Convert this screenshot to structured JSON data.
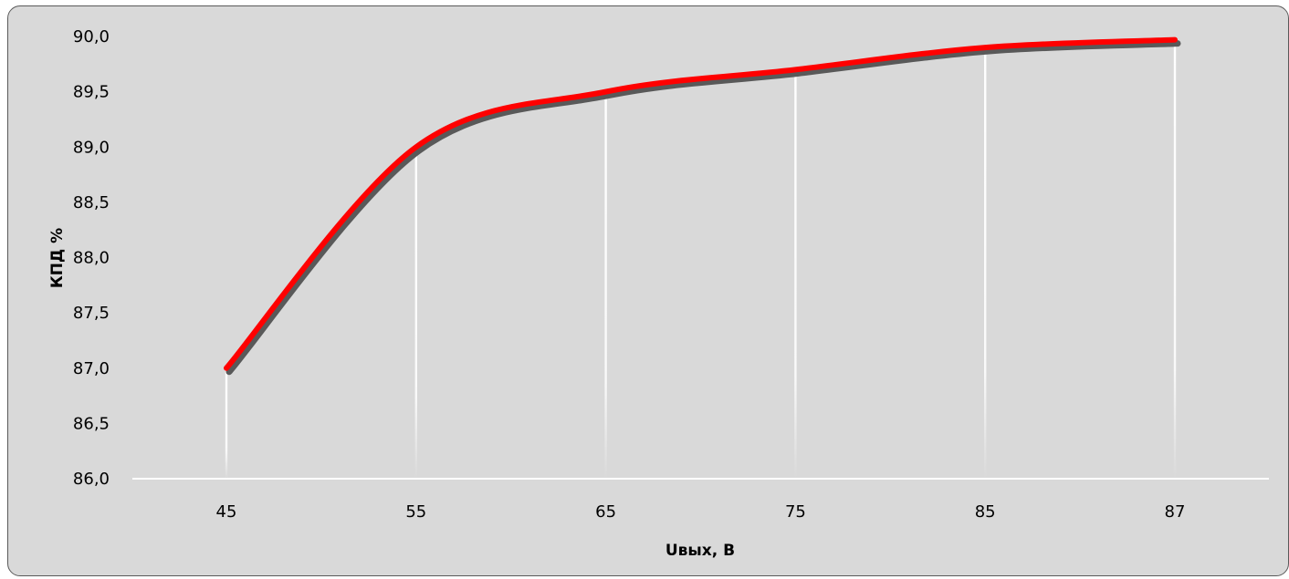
{
  "chart_data": {
    "type": "line",
    "title": "",
    "xlabel": "Uвых, В",
    "ylabel": "КПД %",
    "categories": [
      "45",
      "55",
      "65",
      "75",
      "85",
      "87"
    ],
    "series": [
      {
        "values": [
          87.0,
          89.0,
          89.5,
          89.7,
          89.9,
          89.97
        ]
      }
    ],
    "ylim": [
      86.0,
      90.0
    ],
    "yticks": [
      "86,0",
      "86,5",
      "87,0",
      "87,5",
      "88,0",
      "88,5",
      "89,0",
      "89,5",
      "90,0"
    ],
    "grid": "vertical drop lines at each category",
    "legend": "none",
    "line_color": "#ff0000",
    "shadow_color": "#595959",
    "background_color": "#d9d9d9",
    "drop_line_color": "#ffffff"
  }
}
